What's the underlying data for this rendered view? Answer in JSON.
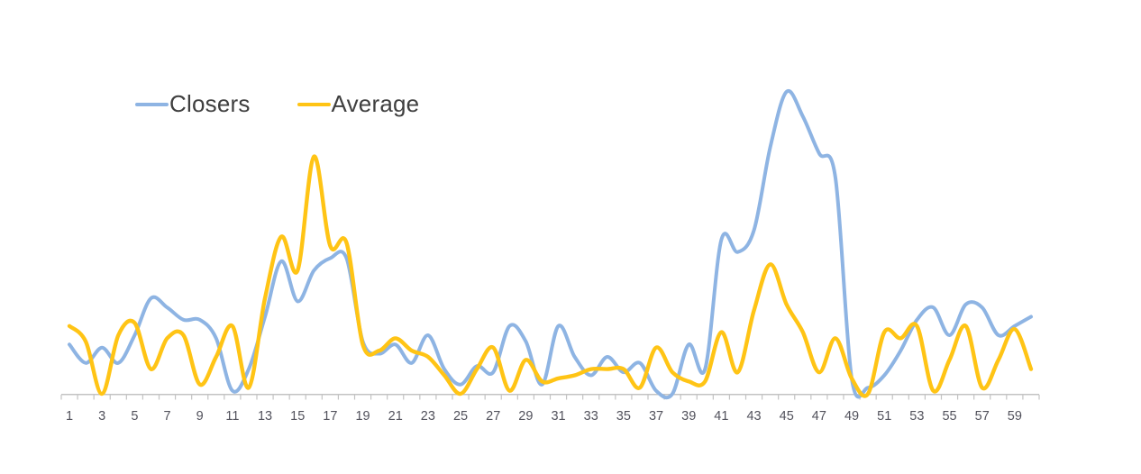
{
  "legend": {
    "items": [
      {
        "label": "Closers",
        "color": "#8EB4E3"
      },
      {
        "label": "Average",
        "color": "#FFC415"
      }
    ]
  },
  "chart_data": {
    "type": "line",
    "title": "",
    "xlabel": "",
    "ylabel": "",
    "x": [
      1,
      2,
      3,
      4,
      5,
      6,
      7,
      8,
      9,
      10,
      11,
      12,
      13,
      14,
      15,
      16,
      17,
      18,
      19,
      20,
      21,
      22,
      23,
      24,
      25,
      26,
      27,
      28,
      29,
      30,
      31,
      32,
      33,
      34,
      35,
      36,
      37,
      38,
      39,
      40,
      41,
      42,
      43,
      44,
      45,
      46,
      47,
      48,
      49,
      50,
      51,
      52,
      53,
      54,
      55,
      56,
      57,
      58,
      59,
      60
    ],
    "x_tick_labels_shown": [
      "1",
      "3",
      "5",
      "7",
      "9",
      "11",
      "13",
      "15",
      "17",
      "19",
      "21",
      "23",
      "25",
      "27",
      "29",
      "31",
      "33",
      "35",
      "37",
      "39",
      "41",
      "43",
      "45",
      "47",
      "49",
      "51",
      "53",
      "55",
      "57",
      "59"
    ],
    "ylim": [
      0,
      100
    ],
    "grid": false,
    "legend_position": "top-left",
    "line_style": "smooth",
    "series": [
      {
        "name": "Closers",
        "color": "#8EB4E3",
        "values": [
          16,
          10,
          15,
          10,
          19,
          31,
          28,
          24,
          24,
          18,
          1,
          8,
          25,
          43,
          30,
          40,
          44,
          44,
          17,
          13,
          16,
          10,
          19,
          8,
          3,
          9,
          7,
          22,
          17,
          3,
          22,
          12,
          6,
          12,
          7,
          10,
          1,
          0,
          16,
          8,
          50,
          46,
          53,
          80,
          98,
          90,
          78,
          70,
          5,
          2,
          6,
          14,
          24,
          28,
          19,
          29,
          28,
          19,
          22,
          25
        ]
      },
      {
        "name": "Average",
        "color": "#FFC415",
        "values": [
          22,
          17,
          0,
          19,
          23,
          8,
          18,
          19,
          3,
          12,
          22,
          2,
          31,
          51,
          40,
          77,
          48,
          49,
          16,
          14,
          18,
          14,
          12,
          6,
          0,
          8,
          15,
          1,
          11,
          4,
          5,
          6,
          8,
          8,
          8,
          2,
          15,
          7,
          4,
          4,
          20,
          7,
          27,
          42,
          29,
          20,
          7,
          18,
          5,
          0,
          20,
          18,
          22,
          1,
          11,
          22,
          2,
          11,
          21,
          8
        ]
      }
    ],
    "axis": {
      "line_color": "#c3c3c3",
      "tick_color": "#c3c3c3",
      "tick_label_color": "#52525c"
    }
  }
}
